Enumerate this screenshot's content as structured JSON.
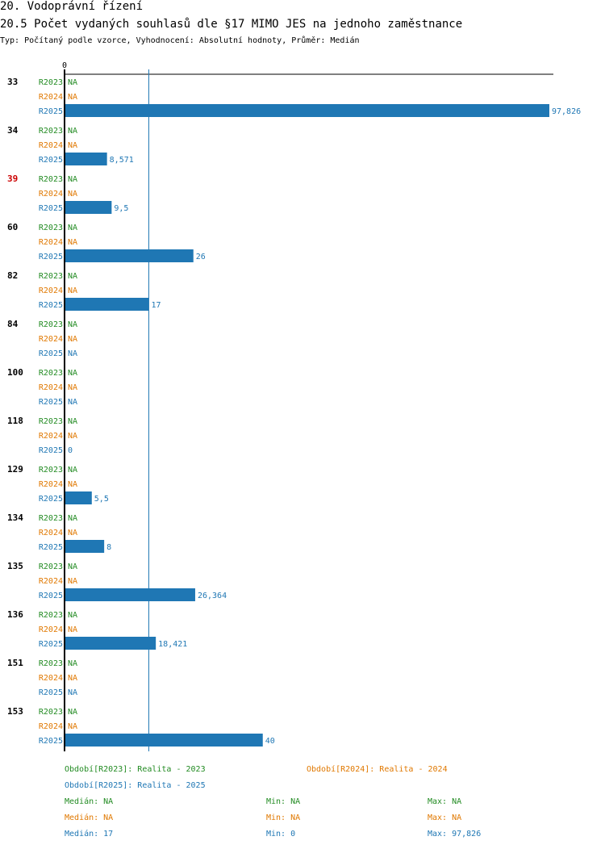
{
  "header": {
    "title": "20. Vodoprávní řízení",
    "subtitle": "20.5 Počet vydaných souhlasů dle §17 MIMO JES na jednoho zaměstnance",
    "typeline": "Typ: Počítaný podle vzorce, Vyhodnocení: Absolutní hodnoty, Průměr: Medián"
  },
  "colors": {
    "R2023": "#228B22",
    "R2024": "#E07800",
    "R2025": "#1F77B4",
    "bar": "#1F77B4",
    "group_default": "#000000",
    "group_highlight": "#CC0000"
  },
  "chart_data": {
    "type": "bar",
    "orientation": "horizontal",
    "axis_zero_label": "0",
    "xlim": [
      0,
      97.826
    ],
    "median_line": 17,
    "series": [
      {
        "name": "R2023",
        "values": [
          null,
          null,
          null,
          null,
          null,
          null,
          null,
          null,
          null,
          null,
          null,
          null,
          null,
          null
        ]
      },
      {
        "name": "R2024",
        "values": [
          null,
          null,
          null,
          null,
          null,
          null,
          null,
          null,
          null,
          null,
          null,
          null,
          null,
          null
        ]
      },
      {
        "name": "R2025",
        "values": [
          97.826,
          8.571,
          9.5,
          26,
          17,
          null,
          null,
          0,
          5.5,
          8,
          26.364,
          18.421,
          null,
          40
        ]
      }
    ],
    "groups": [
      {
        "label": "33",
        "highlight": false,
        "labels": [
          "NA",
          "NA",
          "97,826"
        ]
      },
      {
        "label": "34",
        "highlight": false,
        "labels": [
          "NA",
          "NA",
          "8,571"
        ]
      },
      {
        "label": "39",
        "highlight": true,
        "labels": [
          "NA",
          "NA",
          "9,5"
        ]
      },
      {
        "label": "60",
        "highlight": false,
        "labels": [
          "NA",
          "NA",
          "26"
        ]
      },
      {
        "label": "82",
        "highlight": false,
        "labels": [
          "NA",
          "NA",
          "17"
        ]
      },
      {
        "label": "84",
        "highlight": false,
        "labels": [
          "NA",
          "NA",
          "NA"
        ]
      },
      {
        "label": "100",
        "highlight": false,
        "labels": [
          "NA",
          "NA",
          "NA"
        ]
      },
      {
        "label": "118",
        "highlight": false,
        "labels": [
          "NA",
          "NA",
          "0"
        ]
      },
      {
        "label": "129",
        "highlight": false,
        "labels": [
          "NA",
          "NA",
          "5,5"
        ]
      },
      {
        "label": "134",
        "highlight": false,
        "labels": [
          "NA",
          "NA",
          "8"
        ]
      },
      {
        "label": "135",
        "highlight": false,
        "labels": [
          "NA",
          "NA",
          "26,364"
        ]
      },
      {
        "label": "136",
        "highlight": false,
        "labels": [
          "NA",
          "NA",
          "18,421"
        ]
      },
      {
        "label": "151",
        "highlight": false,
        "labels": [
          "NA",
          "NA",
          "NA"
        ]
      },
      {
        "label": "153",
        "highlight": false,
        "labels": [
          "NA",
          "NA",
          "40"
        ]
      }
    ]
  },
  "legend": {
    "period_2023": "Období[R2023]: Realita - 2023",
    "period_2024": "Období[R2024]: Realita - 2024",
    "period_2025": "Období[R2025]: Realita - 2025",
    "stats": [
      {
        "median": "Medián: NA",
        "min": "Min: NA",
        "max": "Max: NA"
      },
      {
        "median": "Medián: NA",
        "min": "Min: NA",
        "max": "Max: NA"
      },
      {
        "median": "Medián: 17",
        "min": "Min: 0",
        "max": "Max: 97,826"
      }
    ]
  }
}
